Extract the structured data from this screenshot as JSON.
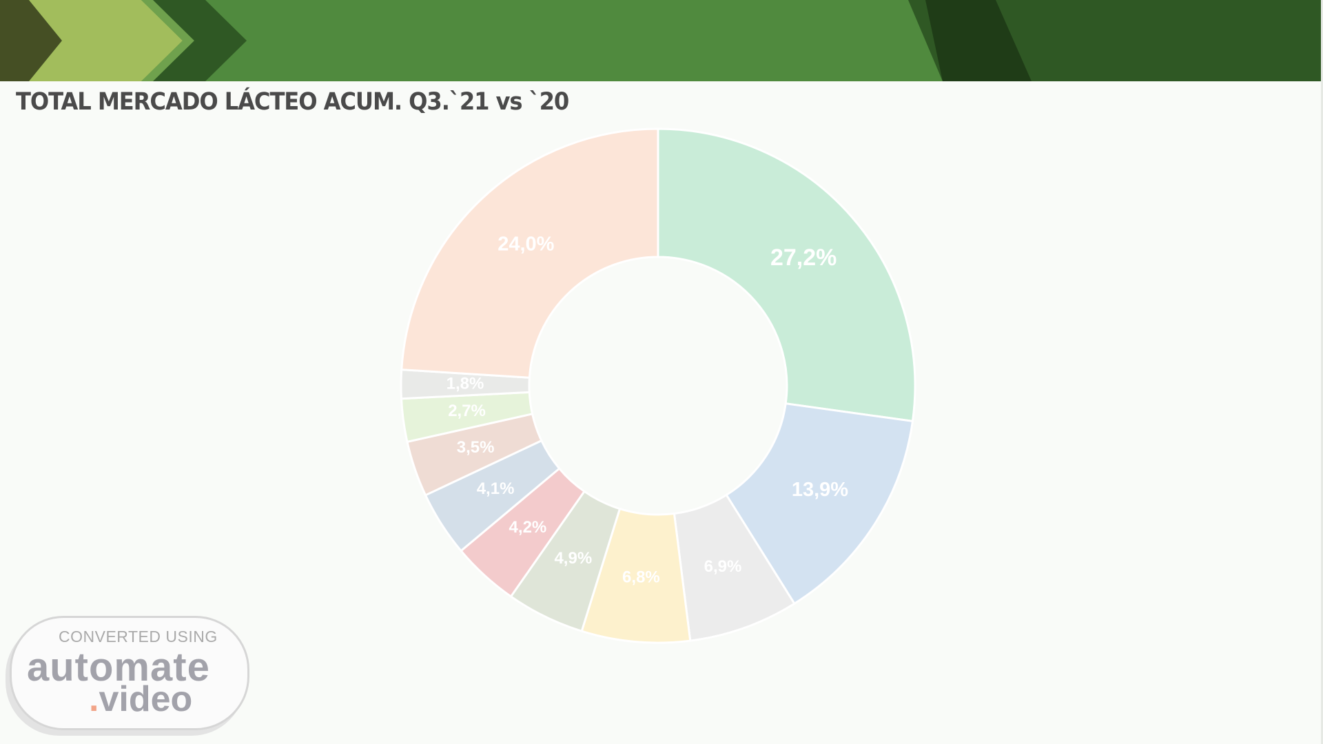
{
  "slide": {
    "title": "TOTAL MERCADO LÁCTEO ACUM. Q3.`21 vs `20"
  },
  "colors": {
    "banner_green": "#508a3e",
    "banner_dark": "#2f5824",
    "banner_darkest": "#1f3c17",
    "chevron_light": "#a2bd5c",
    "chevron_olive": "#454f24"
  },
  "chart_data": {
    "type": "pie",
    "variant": "donut",
    "title": "",
    "legend": "none",
    "slices": [
      {
        "label": "27,2%",
        "value": 27.2,
        "color": "#c9ecd8"
      },
      {
        "label": "13,9%",
        "value": 13.9,
        "color": "#d3e2f1"
      },
      {
        "label": "6,9%",
        "value": 6.9,
        "color": "#ececec"
      },
      {
        "label": "6,8%",
        "value": 6.8,
        "color": "#fdf1cd"
      },
      {
        "label": "4,9%",
        "value": 4.9,
        "color": "#dfe5d8"
      },
      {
        "label": "4,2%",
        "value": 4.2,
        "color": "#f3cbcc"
      },
      {
        "label": "4,1%",
        "value": 4.1,
        "color": "#d4dfe9"
      },
      {
        "label": "3,5%",
        "value": 3.5,
        "color": "#efdcd4"
      },
      {
        "label": "2,7%",
        "value": 2.7,
        "color": "#e6f3da"
      },
      {
        "label": "1,8%",
        "value": 1.8,
        "color": "#e9eae8"
      },
      {
        "label": "24,0%",
        "value": 24.0,
        "color": "#fce5d8"
      }
    ]
  },
  "watermark": {
    "line1": "CONVERTED USING",
    "line2": "automate",
    "line3_dot": ".",
    "line3": "video"
  }
}
